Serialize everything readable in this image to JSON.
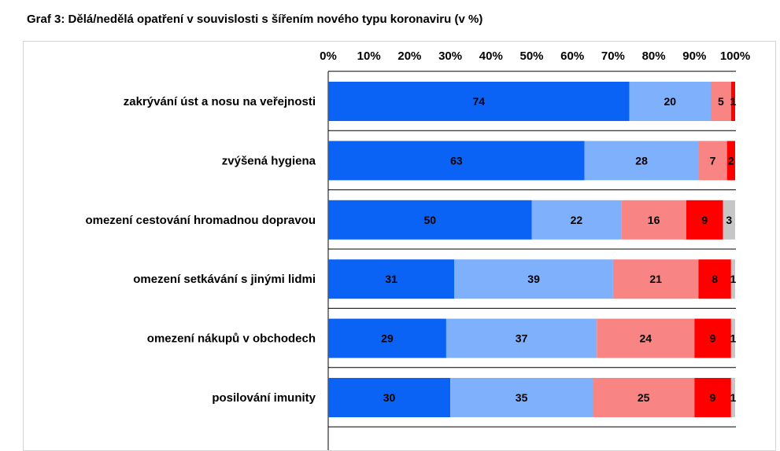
{
  "page": {
    "title": "Graf 3: Dělá/nedělá opatření v souvislosti s šířením nového typu koronaviru (v %)"
  },
  "colors": {
    "series": [
      "#0a63f5",
      "#7fb0fc",
      "#f98484",
      "#ff0000",
      "#c6c6c6"
    ],
    "separator": "#000000",
    "background": "#ffffff"
  },
  "chart_data": {
    "type": "bar",
    "orientation": "horizontal",
    "stacked": true,
    "title": "Graf 3: Dělá/nedělá opatření v souvislosti s šířením nového typu koronaviru (v %)",
    "xlabel": "",
    "ylabel": "",
    "xlim": [
      0,
      100
    ],
    "x_ticks": [
      "0%",
      "10%",
      "20%",
      "30%",
      "40%",
      "50%",
      "60%",
      "70%",
      "80%",
      "90%",
      "100%"
    ],
    "x_axis_position": "top",
    "legend": "none",
    "grid": false,
    "categories": [
      "zakrývání úst a nosu na veřejnosti",
      "zvýšená hygiena",
      "omezení cestování hromadnou dopravou",
      "omezení setkávání s jinými lidmi",
      "omezení nákupů v obchodech",
      "posilování imunity"
    ],
    "series": [
      {
        "values": [
          74,
          63,
          50,
          31,
          29,
          30
        ]
      },
      {
        "values": [
          20,
          28,
          22,
          39,
          37,
          35
        ]
      },
      {
        "values": [
          5,
          7,
          16,
          21,
          24,
          25
        ]
      },
      {
        "values": [
          1,
          2,
          9,
          8,
          9,
          9
        ]
      },
      {
        "values": [
          0,
          0,
          3,
          1,
          1,
          1
        ]
      }
    ],
    "data_labels": [
      [
        "74",
        "20",
        "5",
        "1",
        ""
      ],
      [
        "63",
        "28",
        "7",
        "2",
        ""
      ],
      [
        "50",
        "22",
        "16",
        "9",
        "3"
      ],
      [
        "31",
        "39",
        "21",
        "8",
        "1"
      ],
      [
        "29",
        "37",
        "24",
        "9",
        "1"
      ],
      [
        "30",
        "35",
        "25",
        "9",
        "1"
      ]
    ]
  }
}
